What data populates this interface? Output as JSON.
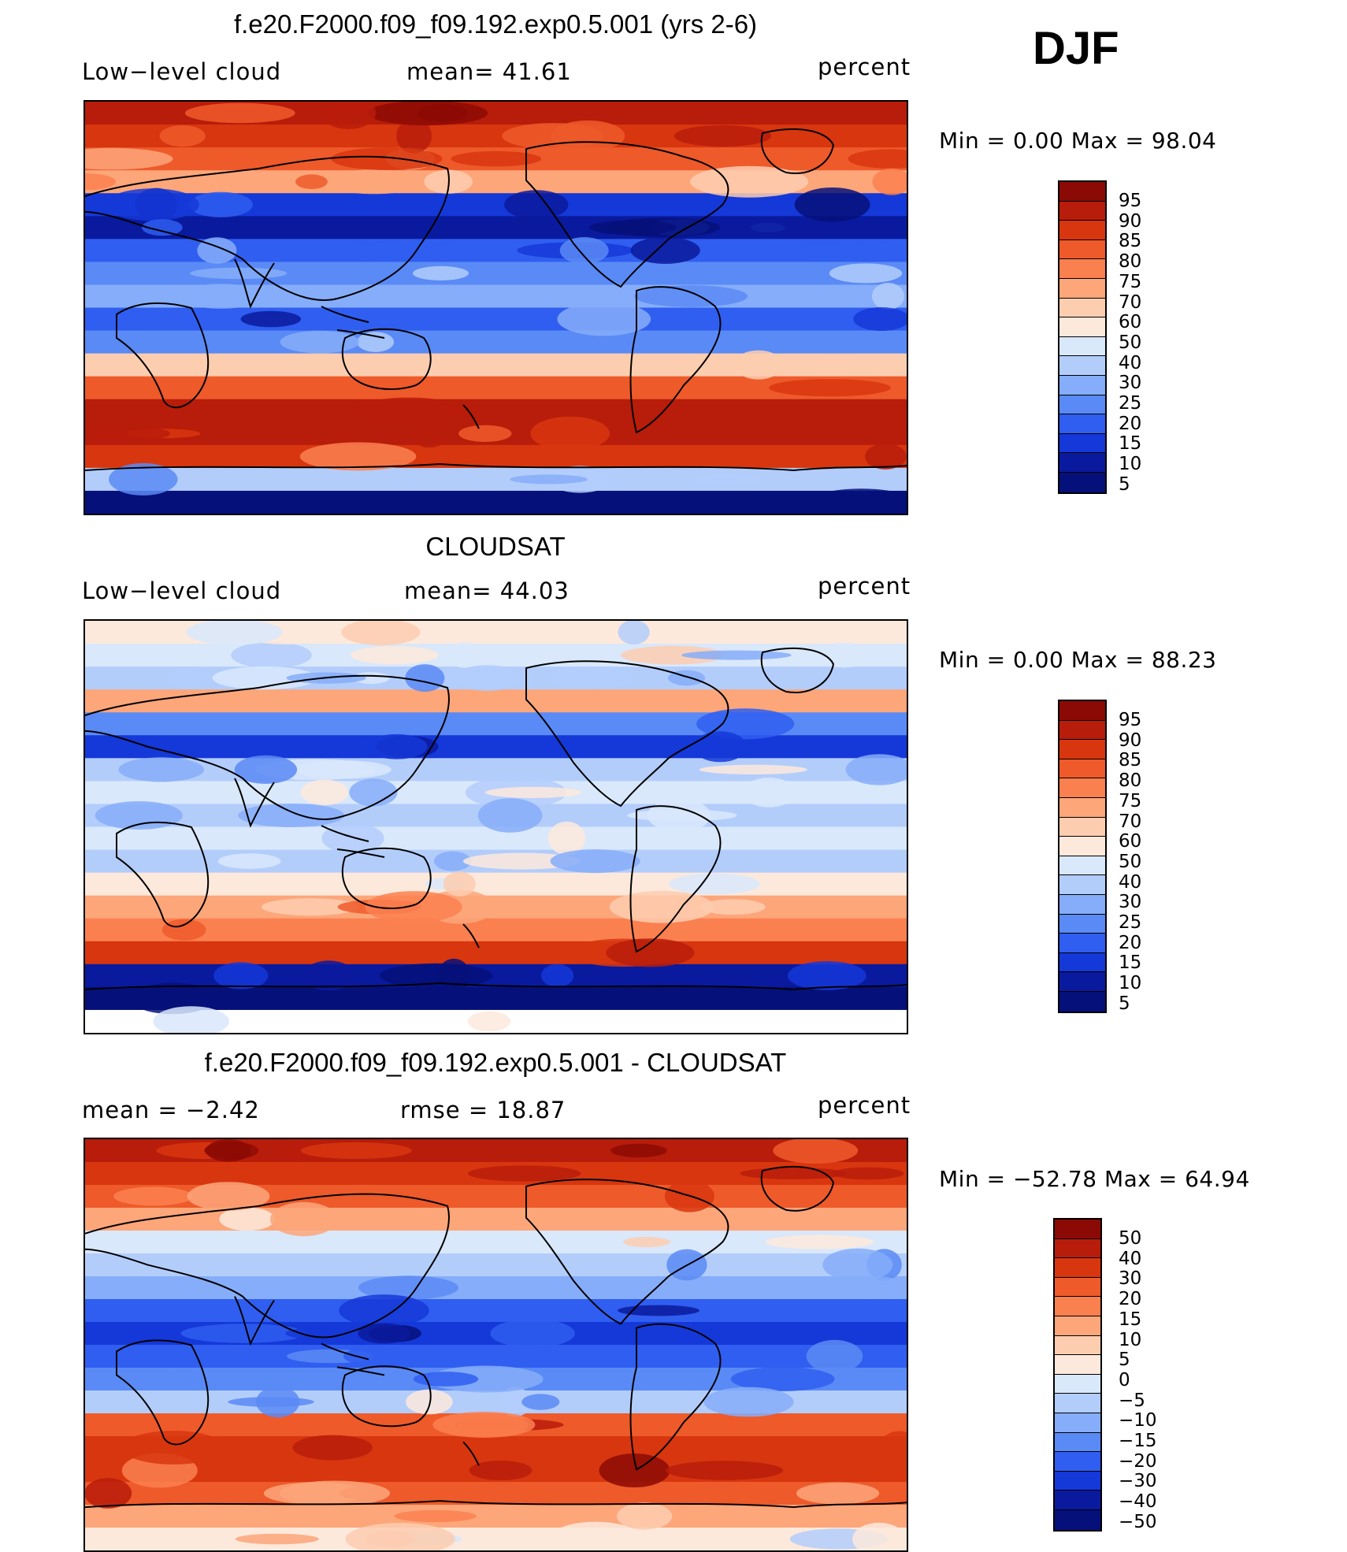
{
  "season": "DJF",
  "coastline_color": "#000000",
  "panels": [
    {
      "title": "f.e20.F2000.f09_f09.192.exp0.5.001 (yrs 2-6)",
      "left_label": "Low−level cloud",
      "mid_label": "mean=   41.61",
      "right_label": "percent",
      "minmax": "Min =     0.00  Max =    98.04",
      "colorbar_labels": [
        "95",
        "90",
        "85",
        "80",
        "75",
        "70",
        "60",
        "50",
        "40",
        "30",
        "25",
        "20",
        "15",
        "10",
        "5"
      ],
      "colorbar_colors": [
        "#8c0a05",
        "#b81c0a",
        "#d8360f",
        "#ee5a2a",
        "#fb8050",
        "#fca67a",
        "#fdcdb0",
        "#fde9dc",
        "#d9e8fb",
        "#b3cdfb",
        "#86adf9",
        "#5a8af5",
        "#2f5ef0",
        "#1538d8",
        "#0a1a9e",
        "#06107a"
      ],
      "map_bands": [
        "#b81c0a",
        "#d8360f",
        "#ee5a2a",
        "#fca67a",
        "#1538d8",
        "#0a1a9e",
        "#2f5ef0",
        "#5a8af5",
        "#86adf9",
        "#2f5ef0",
        "#5a8af5",
        "#fdcdb0",
        "#ee5a2a",
        "#b81c0a",
        "#b81c0a",
        "#d8360f",
        "#b3cdfb",
        "#06107a"
      ]
    },
    {
      "title": "CLOUDSAT",
      "left_label": "Low−level cloud",
      "mid_label": "mean=   44.03",
      "right_label": "percent",
      "minmax": "Min =     0.00  Max =    88.23",
      "colorbar_labels": [
        "95",
        "90",
        "85",
        "80",
        "75",
        "70",
        "60",
        "50",
        "40",
        "30",
        "25",
        "20",
        "15",
        "10",
        "5"
      ],
      "colorbar_colors": [
        "#8c0a05",
        "#b81c0a",
        "#d8360f",
        "#ee5a2a",
        "#fb8050",
        "#fca67a",
        "#fdcdb0",
        "#fde9dc",
        "#d9e8fb",
        "#b3cdfb",
        "#86adf9",
        "#5a8af5",
        "#2f5ef0",
        "#1538d8",
        "#0a1a9e",
        "#06107a"
      ],
      "map_bands": [
        "#fde9dc",
        "#d9e8fb",
        "#b3cdfb",
        "#fca67a",
        "#5a8af5",
        "#1538d8",
        "#b3cdfb",
        "#d9e8fb",
        "#b3cdfb",
        "#d9e8fb",
        "#b3cdfb",
        "#fde9dc",
        "#fca67a",
        "#fb8050",
        "#d8360f",
        "#0a1a9e",
        "#06107a",
        "#ffffff"
      ]
    },
    {
      "title": "f.e20.F2000.f09_f09.192.exp0.5.001 - CLOUDSAT",
      "left_label": "mean =    −2.42",
      "mid_label": "rmse =    18.87",
      "right_label": "percent",
      "minmax": "Min =  −52.78  Max =    64.94",
      "colorbar_labels": [
        "50",
        "40",
        "30",
        "20",
        "15",
        "10",
        "5",
        "0",
        "−5",
        "−10",
        "−15",
        "−20",
        "−30",
        "−40",
        "−50"
      ],
      "colorbar_colors": [
        "#8c0a05",
        "#b81c0a",
        "#d8360f",
        "#ee5a2a",
        "#fb8050",
        "#fca67a",
        "#fdcdb0",
        "#fde9dc",
        "#d9e8fb",
        "#b3cdfb",
        "#86adf9",
        "#5a8af5",
        "#2f5ef0",
        "#1538d8",
        "#0a1a9e",
        "#06107a"
      ],
      "map_bands": [
        "#b81c0a",
        "#d8360f",
        "#ee5a2a",
        "#fca67a",
        "#d9e8fb",
        "#b3cdfb",
        "#86adf9",
        "#2f5ef0",
        "#1538d8",
        "#2f5ef0",
        "#5a8af5",
        "#b3cdfb",
        "#ee5a2a",
        "#d8360f",
        "#d8360f",
        "#ee5a2a",
        "#fca67a",
        "#fde9dc"
      ]
    }
  ]
}
